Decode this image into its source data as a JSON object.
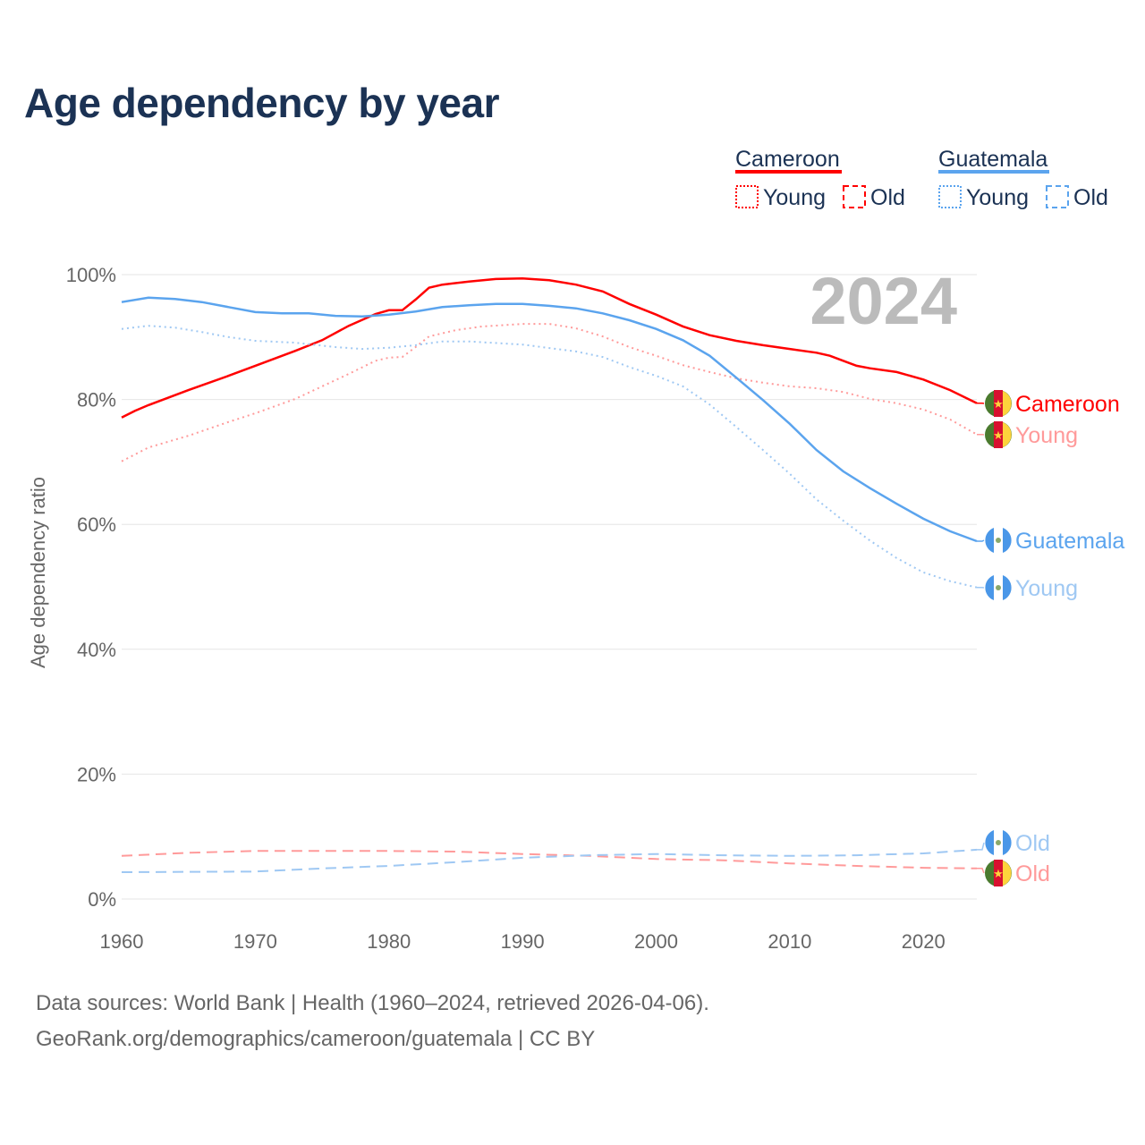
{
  "chart_data": {
    "type": "line",
    "title": "Age dependency by year",
    "ylabel": "Age dependency ratio",
    "xlabel": "",
    "xlim": [
      1960,
      2024
    ],
    "ylim": [
      0,
      100
    ],
    "x_ticks": [
      "1960",
      "1970",
      "1980",
      "1990",
      "2000",
      "2010",
      "2020"
    ],
    "y_ticks": [
      "0%",
      "20%",
      "40%",
      "60%",
      "80%",
      "100%"
    ],
    "year_label": "2024",
    "legend": {
      "groups": [
        {
          "name": "Cameroon",
          "color": "#ff0000",
          "items": [
            "Young",
            "Old"
          ]
        },
        {
          "name": "Guatemala",
          "color": "#5ba4ee",
          "items": [
            "Young",
            "Old"
          ]
        }
      ],
      "placement": "top-right"
    },
    "series": [
      {
        "name": "Cameroon",
        "label": "Cameroon",
        "color": "#ff0000",
        "style": "solid",
        "country": "cameroon",
        "points": [
          [
            1960,
            77.1
          ],
          [
            1961,
            78.2
          ],
          [
            1962,
            79.1
          ],
          [
            1965,
            81.5
          ],
          [
            1968,
            83.8
          ],
          [
            1970,
            85.4
          ],
          [
            1973,
            87.8
          ],
          [
            1975,
            89.5
          ],
          [
            1977,
            91.8
          ],
          [
            1979,
            93.7
          ],
          [
            1980,
            94.3
          ],
          [
            1981,
            94.3
          ],
          [
            1982,
            96
          ],
          [
            1983,
            97.9
          ],
          [
            1984,
            98.4
          ],
          [
            1986,
            98.9
          ],
          [
            1988,
            99.3
          ],
          [
            1990,
            99.4
          ],
          [
            1992,
            99.1
          ],
          [
            1994,
            98.4
          ],
          [
            1996,
            97.3
          ],
          [
            1998,
            95.3
          ],
          [
            2000,
            93.6
          ],
          [
            2002,
            91.7
          ],
          [
            2004,
            90.3
          ],
          [
            2006,
            89.4
          ],
          [
            2008,
            88.7
          ],
          [
            2010,
            88.1
          ],
          [
            2012,
            87.5
          ],
          [
            2013,
            87
          ],
          [
            2014,
            86.2
          ],
          [
            2015,
            85.4
          ],
          [
            2016,
            85
          ],
          [
            2018,
            84.4
          ],
          [
            2020,
            83.2
          ],
          [
            2022,
            81.5
          ],
          [
            2024,
            79.4
          ]
        ]
      },
      {
        "name": "Cameroon Young",
        "label": "Young",
        "color": "#ff9a9a",
        "style": "dotted",
        "country": "cameroon",
        "points": [
          [
            1960,
            70.1
          ],
          [
            1962,
            72.3
          ],
          [
            1965,
            74.2
          ],
          [
            1968,
            76.4
          ],
          [
            1970,
            77.8
          ],
          [
            1973,
            80.1
          ],
          [
            1975,
            82.1
          ],
          [
            1977,
            84.1
          ],
          [
            1979,
            86.2
          ],
          [
            1980,
            86.7
          ],
          [
            1981,
            86.8
          ],
          [
            1982,
            88.4
          ],
          [
            1983,
            90.1
          ],
          [
            1985,
            91.1
          ],
          [
            1987,
            91.7
          ],
          [
            1990,
            92.1
          ],
          [
            1992,
            92.1
          ],
          [
            1994,
            91.4
          ],
          [
            1996,
            90.1
          ],
          [
            1998,
            88.4
          ],
          [
            2000,
            87
          ],
          [
            2002,
            85.5
          ],
          [
            2004,
            84.4
          ],
          [
            2006,
            83.4
          ],
          [
            2008,
            82.7
          ],
          [
            2010,
            82.1
          ],
          [
            2012,
            81.8
          ],
          [
            2014,
            81.2
          ],
          [
            2016,
            80.1
          ],
          [
            2018,
            79.4
          ],
          [
            2020,
            78.4
          ],
          [
            2022,
            76.8
          ],
          [
            2024,
            74.4
          ]
        ]
      },
      {
        "name": "Cameroon Old",
        "label": "Old",
        "color": "#ff9a9a",
        "style": "dashed",
        "country": "cameroon",
        "points": [
          [
            1960,
            6.9
          ],
          [
            1965,
            7.4
          ],
          [
            1970,
            7.7
          ],
          [
            1975,
            7.7
          ],
          [
            1980,
            7.7
          ],
          [
            1985,
            7.6
          ],
          [
            1990,
            7.2
          ],
          [
            1995,
            6.9
          ],
          [
            2000,
            6.4
          ],
          [
            2005,
            6.2
          ],
          [
            2010,
            5.7
          ],
          [
            2015,
            5.3
          ],
          [
            2020,
            5.0
          ],
          [
            2024,
            4.9
          ]
        ]
      },
      {
        "name": "Guatemala",
        "label": "Guatemala",
        "color": "#5ba4ee",
        "style": "solid",
        "country": "guatemala",
        "points": [
          [
            1960,
            95.6
          ],
          [
            1962,
            96.3
          ],
          [
            1964,
            96.1
          ],
          [
            1966,
            95.6
          ],
          [
            1968,
            94.8
          ],
          [
            1970,
            94
          ],
          [
            1972,
            93.8
          ],
          [
            1974,
            93.8
          ],
          [
            1976,
            93.4
          ],
          [
            1978,
            93.3
          ],
          [
            1980,
            93.6
          ],
          [
            1982,
            94.1
          ],
          [
            1984,
            94.8
          ],
          [
            1986,
            95.1
          ],
          [
            1988,
            95.3
          ],
          [
            1990,
            95.3
          ],
          [
            1992,
            95
          ],
          [
            1994,
            94.6
          ],
          [
            1996,
            93.8
          ],
          [
            1998,
            92.7
          ],
          [
            2000,
            91.3
          ],
          [
            2002,
            89.5
          ],
          [
            2004,
            87
          ],
          [
            2006,
            83.5
          ],
          [
            2008,
            79.9
          ],
          [
            2010,
            76.1
          ],
          [
            2012,
            71.9
          ],
          [
            2014,
            68.5
          ],
          [
            2016,
            65.8
          ],
          [
            2018,
            63.3
          ],
          [
            2020,
            60.9
          ],
          [
            2022,
            58.9
          ],
          [
            2024,
            57.3
          ]
        ]
      },
      {
        "name": "Guatemala Young",
        "label": "Young",
        "color": "#9fc8f3",
        "style": "dotted",
        "country": "guatemala",
        "points": [
          [
            1960,
            91.3
          ],
          [
            1962,
            91.8
          ],
          [
            1964,
            91.5
          ],
          [
            1966,
            90.8
          ],
          [
            1968,
            90
          ],
          [
            1970,
            89.4
          ],
          [
            1973,
            89.1
          ],
          [
            1976,
            88.4
          ],
          [
            1978,
            88.1
          ],
          [
            1980,
            88.3
          ],
          [
            1982,
            88.7
          ],
          [
            1984,
            89.3
          ],
          [
            1986,
            89.3
          ],
          [
            1990,
            88.8
          ],
          [
            1994,
            87.7
          ],
          [
            1996,
            86.8
          ],
          [
            1998,
            85.2
          ],
          [
            2000,
            83.8
          ],
          [
            2002,
            82.1
          ],
          [
            2004,
            79.2
          ],
          [
            2006,
            75.6
          ],
          [
            2008,
            71.9
          ],
          [
            2010,
            68.1
          ],
          [
            2012,
            64
          ],
          [
            2014,
            60.6
          ],
          [
            2016,
            57.4
          ],
          [
            2018,
            54.6
          ],
          [
            2020,
            52.3
          ],
          [
            2022,
            50.9
          ],
          [
            2024,
            49.9
          ]
        ]
      },
      {
        "name": "Guatemala Old",
        "label": "Old",
        "color": "#9fc8f3",
        "style": "dashed",
        "country": "guatemala",
        "points": [
          [
            1960,
            4.3
          ],
          [
            1970,
            4.4
          ],
          [
            1975,
            4.9
          ],
          [
            1980,
            5.3
          ],
          [
            1985,
            5.9
          ],
          [
            1990,
            6.6
          ],
          [
            1995,
            7
          ],
          [
            2000,
            7.2
          ],
          [
            2005,
            7
          ],
          [
            2010,
            6.9
          ],
          [
            2015,
            7
          ],
          [
            2020,
            7.3
          ],
          [
            2024,
            7.9
          ]
        ]
      }
    ]
  },
  "footer": {
    "line1": "Data sources: World Bank | Health (1960–2024, retrieved 2026-04-06).",
    "line2": "GeoRank.org/demographics/cameroon/guatemala | CC BY"
  }
}
